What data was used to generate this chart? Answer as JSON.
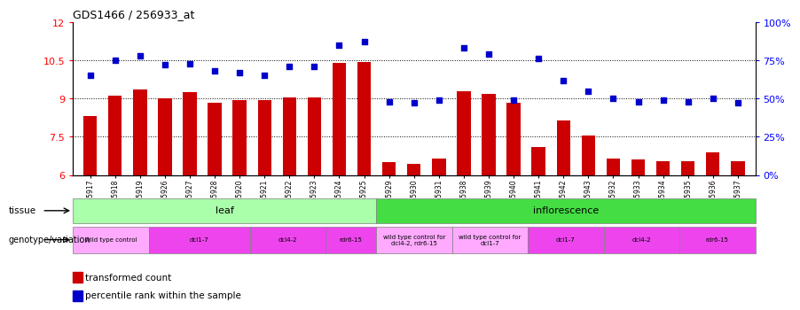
{
  "title": "GDS1466 / 256933_at",
  "samples": [
    "GSM65917",
    "GSM65918",
    "GSM65919",
    "GSM65926",
    "GSM65927",
    "GSM65928",
    "GSM65920",
    "GSM65921",
    "GSM65922",
    "GSM65923",
    "GSM65924",
    "GSM65925",
    "GSM65929",
    "GSM65930",
    "GSM65931",
    "GSM65938",
    "GSM65939",
    "GSM65940",
    "GSM65941",
    "GSM65942",
    "GSM65943",
    "GSM65932",
    "GSM65933",
    "GSM65934",
    "GSM65935",
    "GSM65936",
    "GSM65937"
  ],
  "bar_values": [
    8.3,
    9.1,
    9.35,
    9.0,
    9.25,
    8.85,
    8.95,
    8.95,
    9.05,
    9.05,
    10.4,
    10.45,
    6.5,
    6.45,
    6.65,
    9.3,
    9.2,
    8.85,
    7.1,
    8.15,
    7.55,
    6.65,
    6.6,
    6.55,
    6.55,
    6.9,
    6.55
  ],
  "dot_values_pct": [
    65,
    75,
    78,
    72,
    73,
    68,
    67,
    65,
    71,
    71,
    85,
    87,
    48,
    47,
    49,
    83,
    79,
    49,
    76,
    62,
    55,
    50,
    48,
    49,
    48,
    50,
    47
  ],
  "ylim_left": [
    6,
    12
  ],
  "ylim_right": [
    0,
    100
  ],
  "yticks_left": [
    6,
    7.5,
    9,
    10.5,
    12
  ],
  "ytick_labels_left": [
    "6",
    "7.5",
    "9",
    "10.5",
    "12"
  ],
  "yticks_right": [
    0,
    25,
    50,
    75,
    100
  ],
  "ytick_labels_right": [
    "0%",
    "25%",
    "50%",
    "75%",
    "100%"
  ],
  "hlines": [
    7.5,
    9.0,
    10.5
  ],
  "bar_color": "#cc0000",
  "dot_color": "#0000cc",
  "tissue_leaf_label": "leaf",
  "tissue_inflorescence_label": "inflorescence",
  "tissue_leaf_color": "#aaffaa",
  "tissue_inflorescence_color": "#44dd44",
  "genotype_groups": [
    {
      "label": "wild type control",
      "start": 0,
      "end": 2,
      "color": "#ffaaff"
    },
    {
      "label": "dcl1-7",
      "start": 3,
      "end": 6,
      "color": "#ee44ee"
    },
    {
      "label": "dcl4-2",
      "start": 7,
      "end": 9,
      "color": "#ee44ee"
    },
    {
      "label": "rdr6-15",
      "start": 10,
      "end": 11,
      "color": "#ee44ee"
    },
    {
      "label": "wild type control for\ndcl4-2, rdr6-15",
      "start": 12,
      "end": 14,
      "color": "#ffaaff"
    },
    {
      "label": "wild type control for\ndcl1-7",
      "start": 15,
      "end": 17,
      "color": "#ffaaff"
    },
    {
      "label": "dcl1-7",
      "start": 18,
      "end": 20,
      "color": "#ee44ee"
    },
    {
      "label": "dcl4-2",
      "start": 21,
      "end": 23,
      "color": "#ee44ee"
    },
    {
      "label": "rdr6-15",
      "start": 24,
      "end": 26,
      "color": "#ee44ee"
    }
  ],
  "legend_bar_label": "transformed count",
  "legend_dot_label": "percentile rank within the sample"
}
